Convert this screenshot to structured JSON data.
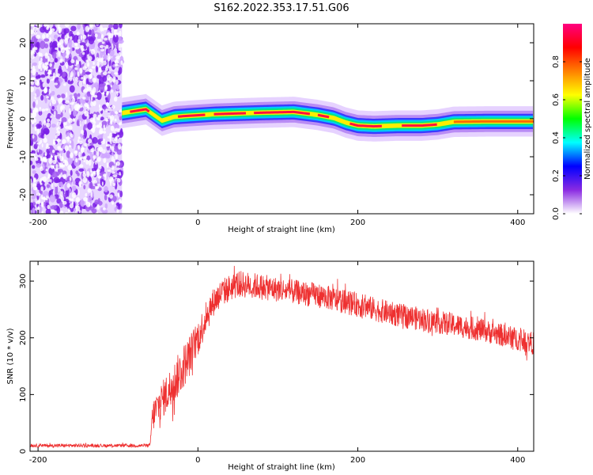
{
  "title": "S162.2022.353.17.51.G06",
  "chart_data": [
    {
      "type": "heatmap",
      "xlabel": "Height of straight line (km)",
      "ylabel": "Frequency (Hz)",
      "xlim": [
        -210,
        420
      ],
      "ylim": [
        -25,
        25
      ],
      "x_ticks": [
        -200,
        0,
        200,
        400
      ],
      "y_ticks": [
        -20,
        -10,
        0,
        10,
        20
      ],
      "colorbar": {
        "label": "Normalized spectral amplitude",
        "range": [
          0.0,
          1.0
        ],
        "ticks": [
          "0.0",
          "0.2",
          "0.4",
          "0.6",
          "0.8"
        ],
        "colormap": [
          "#ffffff",
          "#8a2be2",
          "#0000ff",
          "#00ffff",
          "#00ff00",
          "#ffff00",
          "#ff8000",
          "#ff0000",
          "#ff0080"
        ]
      },
      "noise_region_x": [
        -210,
        -95
      ],
      "ridge": {
        "x": [
          -95,
          -80,
          -65,
          -55,
          -45,
          -30,
          -10,
          20,
          50,
          80,
          120,
          150,
          170,
          185,
          200,
          220,
          250,
          280,
          300,
          320,
          360,
          420
        ],
        "y": [
          1.5,
          2.0,
          2.5,
          1.0,
          -0.5,
          0.5,
          0.8,
          1.2,
          1.4,
          1.6,
          1.8,
          1.0,
          0.2,
          -1.0,
          -1.8,
          -2.0,
          -1.8,
          -1.8,
          -1.5,
          -0.8,
          -0.7,
          -0.7
        ]
      }
    },
    {
      "type": "line",
      "xlabel": "Height of straight line (km)",
      "ylabel": "SNR (10 * v/v)",
      "xlim": [
        -210,
        420
      ],
      "ylim": [
        0,
        335
      ],
      "x_ticks": [
        -200,
        0,
        200,
        400
      ],
      "y_ticks": [
        0,
        100,
        200,
        300
      ],
      "color": "#ee3030",
      "envelope": {
        "x": [
          -210,
          -100,
          -60,
          -57,
          -50,
          -40,
          -30,
          -20,
          -10,
          0,
          10,
          20,
          30,
          40,
          50,
          70,
          100,
          150,
          200,
          250,
          300,
          350,
          400,
          420
        ],
        "y": [
          10,
          10,
          10,
          60,
          80,
          100,
          120,
          145,
          170,
          200,
          235,
          265,
          280,
          288,
          295,
          292,
          285,
          275,
          258,
          240,
          228,
          215,
          198,
          190
        ]
      },
      "noise_amplitude": {
        "x": [
          -210,
          -60,
          -55,
          -20,
          20,
          100,
          420
        ],
        "y": [
          3,
          3,
          30,
          40,
          25,
          22,
          20
        ]
      }
    }
  ]
}
